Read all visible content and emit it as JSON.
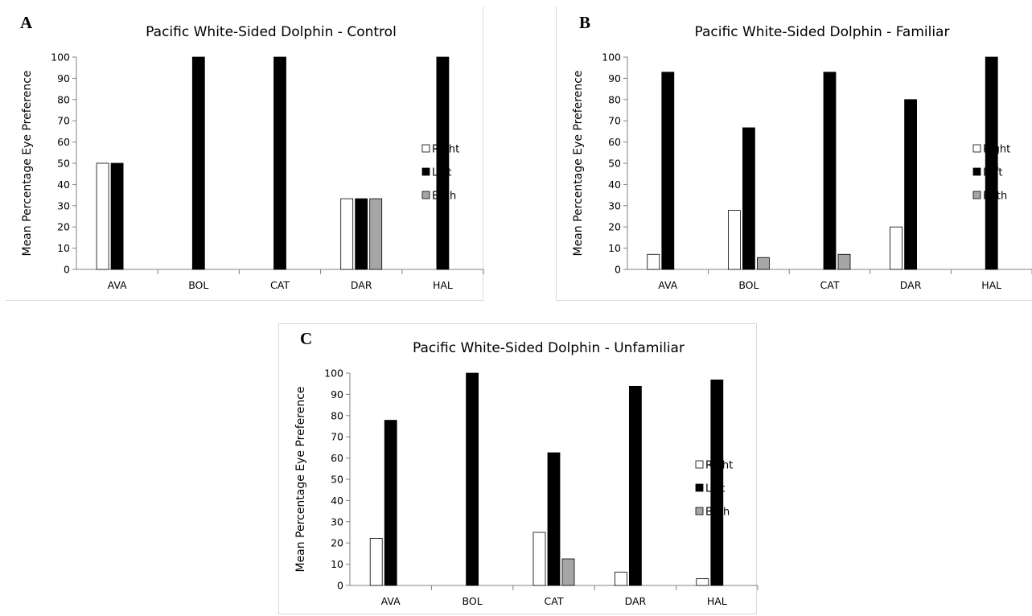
{
  "colors": {
    "Right": "#ffffff",
    "Left": "#000000",
    "Both": "#a6a6a6"
  },
  "panels": [
    {
      "letter": "A"
    },
    {
      "letter": "B"
    },
    {
      "letter": "C"
    }
  ],
  "chart_data": [
    {
      "type": "bar",
      "title": "Pacific White-Sided Dolphin - Control",
      "ylabel": "Mean Percentage Eye Preference",
      "xlabel": "",
      "ylim": [
        0,
        100
      ],
      "yticks": [
        0,
        10,
        20,
        30,
        40,
        50,
        60,
        70,
        80,
        90,
        100
      ],
      "categories": [
        "AVA",
        "BOL",
        "CAT",
        "DAR",
        "HAL"
      ],
      "series": [
        {
          "name": "Right",
          "values": [
            50,
            0,
            0,
            33.3,
            0
          ]
        },
        {
          "name": "Left",
          "values": [
            50,
            100,
            100,
            33.3,
            100
          ]
        },
        {
          "name": "Both",
          "values": [
            0,
            0,
            0,
            33.3,
            0
          ]
        }
      ],
      "legend": "right"
    },
    {
      "type": "bar",
      "title": "Pacific White-Sided Dolphin - Familiar",
      "ylabel": "Mean Percentage Eye Preference",
      "xlabel": "",
      "ylim": [
        0,
        100
      ],
      "yticks": [
        0,
        10,
        20,
        30,
        40,
        50,
        60,
        70,
        80,
        90,
        100
      ],
      "categories": [
        "AVA",
        "BOL",
        "CAT",
        "DAR",
        "HAL"
      ],
      "series": [
        {
          "name": "Right",
          "values": [
            7.1,
            27.8,
            0,
            20,
            0
          ]
        },
        {
          "name": "Left",
          "values": [
            92.9,
            66.7,
            92.9,
            80,
            100
          ]
        },
        {
          "name": "Both",
          "values": [
            0,
            5.6,
            7.1,
            0,
            0
          ]
        }
      ],
      "legend": "right"
    },
    {
      "type": "bar",
      "title": "Pacific White-Sided Dolphin - Unfamiliar",
      "ylabel": "Mean Percentage Eye Preference",
      "xlabel": "",
      "ylim": [
        0,
        100
      ],
      "yticks": [
        0,
        10,
        20,
        30,
        40,
        50,
        60,
        70,
        80,
        90,
        100
      ],
      "categories": [
        "AVA",
        "BOL",
        "CAT",
        "DAR",
        "HAL"
      ],
      "series": [
        {
          "name": "Right",
          "values": [
            22.2,
            0,
            25,
            6.3,
            3.2
          ]
        },
        {
          "name": "Left",
          "values": [
            77.8,
            100,
            62.5,
            93.8,
            96.8
          ]
        },
        {
          "name": "Both",
          "values": [
            0,
            0,
            12.5,
            0,
            0
          ]
        }
      ],
      "legend": "right"
    }
  ]
}
